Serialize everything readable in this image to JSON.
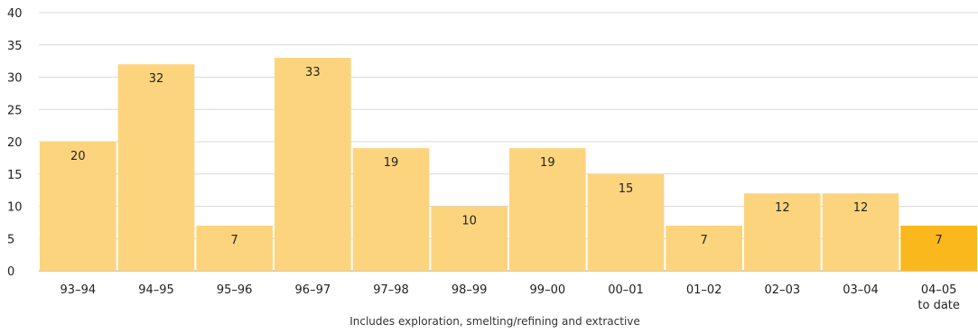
{
  "chart_data": {
    "type": "bar",
    "categories": [
      "93–94",
      "94–95",
      "95–96",
      "96–97",
      "97–98",
      "98–99",
      "99–00",
      "00–01",
      "01–02",
      "02–03",
      "03–04",
      "04–05 to date"
    ],
    "category_lines": [
      [
        "93–94"
      ],
      [
        "94–95"
      ],
      [
        "95–96"
      ],
      [
        "96–97"
      ],
      [
        "97–98"
      ],
      [
        "98–99"
      ],
      [
        "99–00"
      ],
      [
        "00–01"
      ],
      [
        "01–02"
      ],
      [
        "02–03"
      ],
      [
        "03–04"
      ],
      [
        "04–05",
        "to date"
      ]
    ],
    "values": [
      20,
      32,
      7,
      33,
      19,
      10,
      19,
      15,
      7,
      12,
      12,
      7
    ],
    "ylim": [
      0,
      40
    ],
    "yticks": [
      0,
      5,
      10,
      15,
      20,
      25,
      30,
      35,
      40
    ],
    "grid": true,
    "legend": "none",
    "note": "Includes exploration, smelting/refining and extractive",
    "colors": {
      "bar": "#fdd47e",
      "highlight_bar": "#fbb81c",
      "grid": "#d9d9d9"
    },
    "highlight_index": 11
  }
}
